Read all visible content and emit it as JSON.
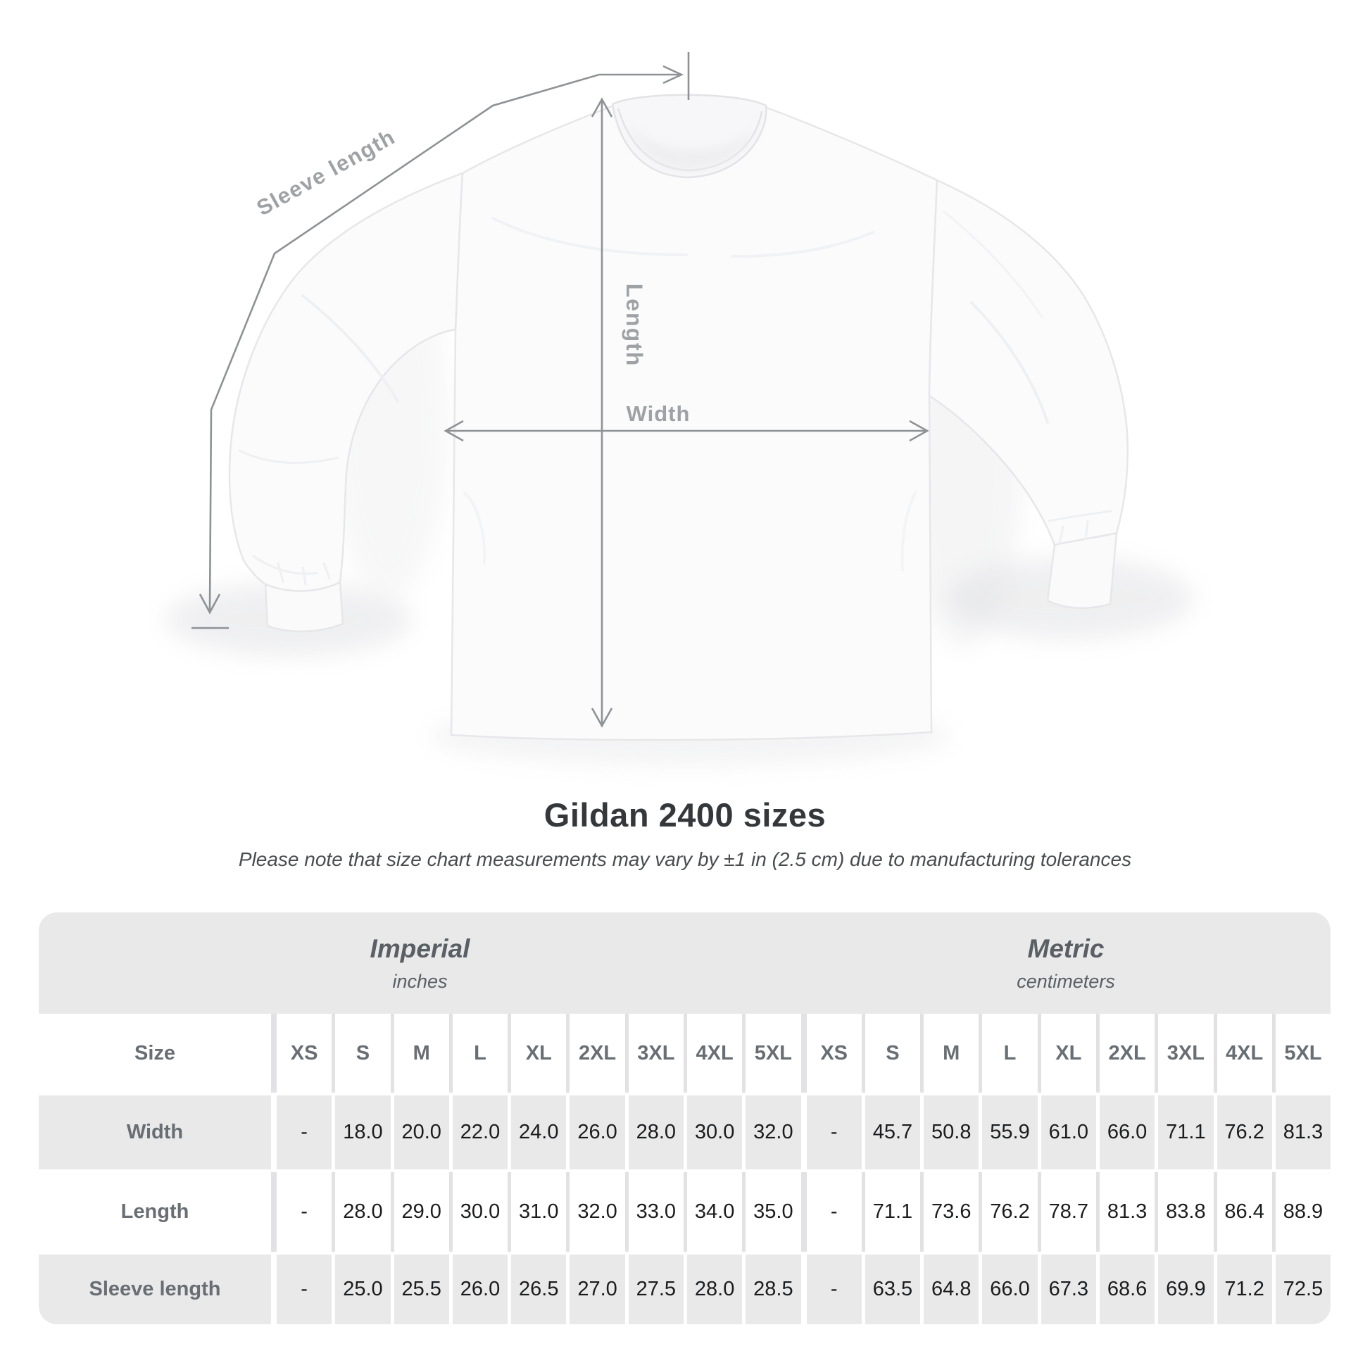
{
  "diagram": {
    "labels": {
      "sleeve": "Sleeve length",
      "length": "Length",
      "width": "Width"
    },
    "line_color": "#8f9295",
    "label_color": "#9fa2a5"
  },
  "heading": {
    "title": "Gildan 2400 sizes",
    "subtitle": "Please note that size chart measurements may vary by ±1 in (2.5 cm) due to manufacturing tolerances"
  },
  "size_chart": {
    "size_label": "Size",
    "groups": [
      {
        "name": "Imperial",
        "unit": "inches"
      },
      {
        "name": "Metric",
        "unit": "centimeters"
      }
    ],
    "sizes": [
      "XS",
      "S",
      "M",
      "L",
      "XL",
      "2XL",
      "3XL",
      "4XL",
      "5XL"
    ],
    "rows": [
      {
        "label": "Width",
        "imperial": [
          "-",
          "18.0",
          "20.0",
          "22.0",
          "24.0",
          "26.0",
          "28.0",
          "30.0",
          "32.0"
        ],
        "metric": [
          "-",
          "45.7",
          "50.8",
          "55.9",
          "61.0",
          "66.0",
          "71.1",
          "76.2",
          "81.3"
        ]
      },
      {
        "label": "Length",
        "imperial": [
          "-",
          "28.0",
          "29.0",
          "30.0",
          "31.0",
          "32.0",
          "33.0",
          "34.0",
          "35.0"
        ],
        "metric": [
          "-",
          "71.1",
          "73.6",
          "76.2",
          "78.7",
          "81.3",
          "83.8",
          "86.4",
          "88.9"
        ]
      },
      {
        "label": "Sleeve length",
        "imperial": [
          "-",
          "25.0",
          "25.5",
          "26.0",
          "26.5",
          "27.0",
          "27.5",
          "28.0",
          "28.5"
        ],
        "metric": [
          "-",
          "63.5",
          "64.8",
          "66.0",
          "67.3",
          "68.6",
          "69.9",
          "71.2",
          "72.5"
        ]
      }
    ],
    "colors": {
      "stripe": "#e9e9ea",
      "header_text": "#686e73",
      "value_text": "#1b1c1d"
    }
  },
  "chart_data": {
    "type": "table",
    "title": "Gildan 2400 sizes",
    "note": "Please note that size chart measurements may vary by ±1 in (2.5 cm) due to manufacturing tolerances",
    "column_groups": [
      {
        "label": "Imperial",
        "unit": "inches",
        "sizes": [
          "XS",
          "S",
          "M",
          "L",
          "XL",
          "2XL",
          "3XL",
          "4XL",
          "5XL"
        ]
      },
      {
        "label": "Metric",
        "unit": "centimeters",
        "sizes": [
          "XS",
          "S",
          "M",
          "L",
          "XL",
          "2XL",
          "3XL",
          "4XL",
          "5XL"
        ]
      }
    ],
    "rows": [
      {
        "measurement": "Width",
        "imperial_in": [
          null,
          18.0,
          20.0,
          22.0,
          24.0,
          26.0,
          28.0,
          30.0,
          32.0
        ],
        "metric_cm": [
          null,
          45.7,
          50.8,
          55.9,
          61.0,
          66.0,
          71.1,
          76.2,
          81.3
        ]
      },
      {
        "measurement": "Length",
        "imperial_in": [
          null,
          28.0,
          29.0,
          30.0,
          31.0,
          32.0,
          33.0,
          34.0,
          35.0
        ],
        "metric_cm": [
          null,
          71.1,
          73.6,
          76.2,
          78.7,
          81.3,
          83.8,
          86.4,
          88.9
        ]
      },
      {
        "measurement": "Sleeve length",
        "imperial_in": [
          null,
          25.0,
          25.5,
          26.0,
          26.5,
          27.0,
          27.5,
          28.0,
          28.5
        ],
        "metric_cm": [
          null,
          63.5,
          64.8,
          66.0,
          67.3,
          68.6,
          69.9,
          71.2,
          72.5
        ]
      }
    ]
  }
}
